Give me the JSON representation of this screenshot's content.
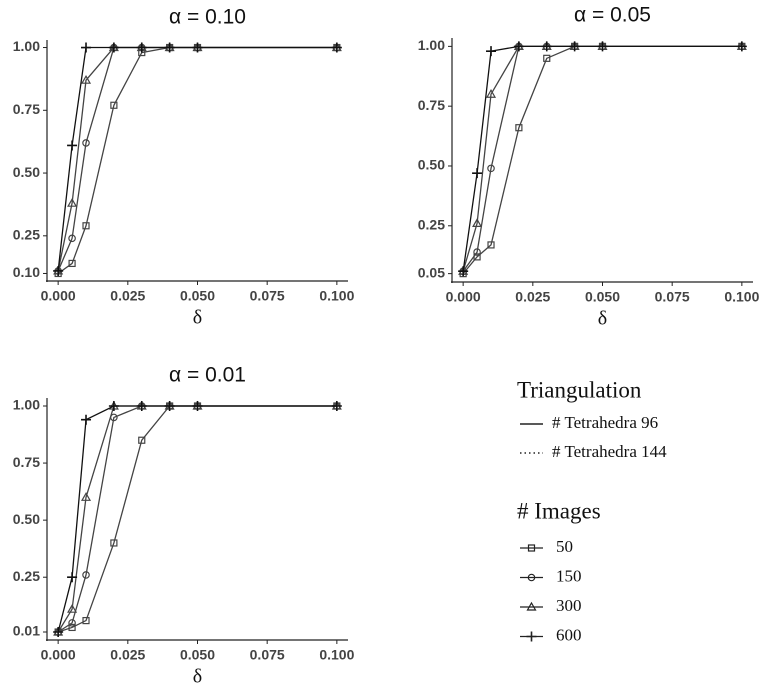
{
  "chart_data": [
    {
      "type": "line",
      "title": "α = 0.10",
      "x_label": "δ",
      "x": [
        0,
        0.005,
        0.01,
        0.02,
        0.03,
        0.04,
        0.05,
        0.1
      ],
      "xlim": [
        -0.004,
        0.104
      ],
      "xticks": [
        {
          "value": 0,
          "label": "0.000"
        },
        {
          "value": 0.025,
          "label": "0.025"
        },
        {
          "value": 0.05,
          "label": "0.050"
        },
        {
          "value": 0.075,
          "label": "0.075"
        },
        {
          "value": 0.1,
          "label": "0.100"
        }
      ],
      "ylim": [
        0.07,
        1.03
      ],
      "yticks": [
        {
          "value": 0.1,
          "label": "0.10"
        },
        0.25,
        {
          "value": 0.5,
          "label": "0.50"
        },
        0.75,
        {
          "value": 1,
          "label": "1.00"
        }
      ],
      "series": [
        {
          "name": "50",
          "marker": "square",
          "color": "#444444",
          "values": [
            0.1,
            0.14,
            0.29,
            0.77,
            0.98,
            1,
            1,
            1
          ]
        },
        {
          "name": "150",
          "marker": "circle",
          "color": "#444444",
          "values": [
            0.11,
            0.24,
            0.62,
            1,
            1,
            1,
            1,
            1
          ]
        },
        {
          "name": "300",
          "marker": "triangle",
          "color": "#444444",
          "values": [
            0.11,
            0.38,
            0.87,
            1,
            1,
            1,
            1,
            1
          ]
        },
        {
          "name": "600",
          "marker": "plus",
          "color": "#111111",
          "values": [
            0.11,
            0.61,
            1,
            1,
            1,
            1,
            1,
            1
          ]
        }
      ]
    },
    {
      "type": "line",
      "title": "α = 0.05",
      "x_label": "δ",
      "x": [
        0,
        0.005,
        0.01,
        0.02,
        0.03,
        0.04,
        0.05,
        0.1
      ],
      "xlim": [
        -0.004,
        0.104
      ],
      "xticks": [
        {
          "value": 0,
          "label": "0.000"
        },
        {
          "value": 0.025,
          "label": "0.025"
        },
        {
          "value": 0.05,
          "label": "0.050"
        },
        {
          "value": 0.075,
          "label": "0.075"
        },
        {
          "value": 0.1,
          "label": "0.100"
        }
      ],
      "ylim": [
        0.015,
        1.035
      ],
      "yticks": [
        0.05,
        0.25,
        {
          "value": 0.5,
          "label": "0.50"
        },
        0.75,
        {
          "value": 1,
          "label": "1.00"
        }
      ],
      "series": [
        {
          "name": "50",
          "marker": "square",
          "color": "#444444",
          "values": [
            0.05,
            0.12,
            0.17,
            0.66,
            0.95,
            1,
            1,
            1
          ]
        },
        {
          "name": "150",
          "marker": "circle",
          "color": "#444444",
          "values": [
            0.06,
            0.14,
            0.49,
            1,
            1,
            1,
            1,
            1
          ]
        },
        {
          "name": "300",
          "marker": "triangle",
          "color": "#444444",
          "values": [
            0.06,
            0.26,
            0.8,
            1,
            1,
            1,
            1,
            1
          ]
        },
        {
          "name": "600",
          "marker": "plus",
          "color": "#111111",
          "values": [
            0.06,
            0.47,
            0.98,
            1,
            1,
            1,
            1,
            1
          ]
        }
      ]
    },
    {
      "type": "line",
      "title": "α = 0.01",
      "x_label": "δ",
      "x": [
        0,
        0.005,
        0.01,
        0.02,
        0.03,
        0.04,
        0.05,
        0.1
      ],
      "xlim": [
        -0.004,
        0.104
      ],
      "xticks": [
        {
          "value": 0,
          "label": "0.000"
        },
        {
          "value": 0.025,
          "label": "0.025"
        },
        {
          "value": 0.05,
          "label": "0.050"
        },
        {
          "value": 0.075,
          "label": "0.075"
        },
        {
          "value": 0.1,
          "label": "0.100"
        }
      ],
      "ylim": [
        -0.025,
        1.035
      ],
      "yticks": [
        0.01,
        0.25,
        {
          "value": 0.5,
          "label": "0.50"
        },
        0.75,
        {
          "value": 1,
          "label": "1.00"
        }
      ],
      "series": [
        {
          "name": "50",
          "marker": "square",
          "color": "#444444",
          "values": [
            0.01,
            0.03,
            0.06,
            0.4,
            0.85,
            1,
            1,
            1
          ]
        },
        {
          "name": "150",
          "marker": "circle",
          "color": "#444444",
          "values": [
            0.01,
            0.05,
            0.26,
            0.95,
            1,
            1,
            1,
            1
          ]
        },
        {
          "name": "300",
          "marker": "triangle",
          "color": "#444444",
          "values": [
            0.01,
            0.11,
            0.6,
            1,
            1,
            1,
            1,
            1
          ]
        },
        {
          "name": "600",
          "marker": "plus",
          "color": "#111111",
          "values": [
            0.01,
            0.25,
            0.94,
            1,
            1,
            1,
            1,
            1
          ]
        }
      ]
    }
  ],
  "legends": [
    {
      "title": "Triangulation",
      "entries": [
        {
          "label": "# Tetrahedra 96",
          "linestyle": "solid"
        },
        {
          "label": "# Tetrahedra 144",
          "linestyle": "dotted"
        }
      ]
    },
    {
      "title": "# Images"
    }
  ]
}
